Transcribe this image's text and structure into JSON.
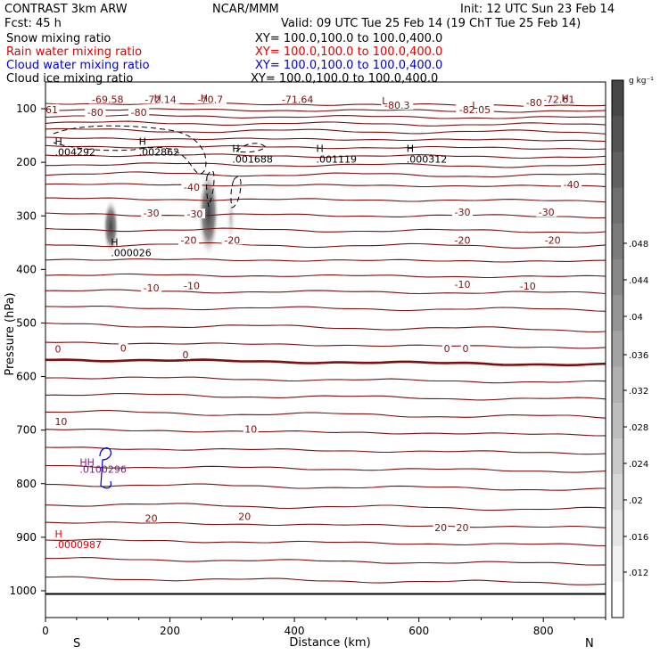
{
  "header": {
    "title": "CONTRAST  3km ARW",
    "center": "NCAR/MMM",
    "init": "Init: 12 UTC Sun 23 Feb 14",
    "fcst": "Fcst:   45 h",
    "valid": "Valid: 09 UTC Tue 25 Feb 14 (19 ChT Tue 25 Feb 14)"
  },
  "fields": [
    {
      "name": "Snow mixing ratio",
      "xy": "XY= 100.0,100.0 to 100.0,400.0",
      "color": "#000000"
    },
    {
      "name": "Rain water mixing ratio",
      "xy": "XY= 100.0,100.0 to 100.0,400.0",
      "color": "#dd0000"
    },
    {
      "name": "Cloud water mixing ratio",
      "xy": "XY= 100.0,100.0 to 100.0,400.0",
      "color": "#0000cc"
    },
    {
      "name": "Cloud ice mixing ratio",
      "xy": "XY= 100.0,100.0 to 100.0,400.0",
      "color": "#000000"
    }
  ],
  "colorbar": {
    "unit": "g kg⁻¹",
    "ticks": [
      ".012",
      ".016",
      ".02",
      ".024",
      ".028",
      ".032",
      ".036",
      ".04",
      ".044",
      ".048"
    ]
  },
  "chart_data": {
    "type": "cross-section contour",
    "xlabel": "Distance (km)",
    "ylabel": "Pressure (hPa)",
    "xlim": [
      0,
      900
    ],
    "ylim": [
      1050,
      50
    ],
    "x_ticks": [
      "0",
      "200",
      "400",
      "600",
      "800"
    ],
    "y_ticks": [
      "100",
      "200",
      "300",
      "400",
      "500",
      "600",
      "700",
      "800",
      "900",
      "1000"
    ],
    "x_ends": {
      "left": "S",
      "right": "N"
    },
    "colors": {
      "temperature": "#7a1010",
      "snow_shading": "#555555",
      "rain": "#dd0000",
      "cloud_water": "#0000cc"
    },
    "temperature_labels": [
      {
        "text": "-69.58",
        "x": 100,
        "p": 84
      },
      {
        "text": "-72.14",
        "x": 185,
        "p": 84
      },
      {
        "text": "-70.7",
        "x": 265,
        "p": 84
      },
      {
        "text": "-71.64",
        "x": 405,
        "p": 84
      },
      {
        "text": "-72.61",
        "x": 825,
        "p": 84
      },
      {
        "text": "-80",
        "x": 785,
        "p": 90
      },
      {
        "text": "-80.3",
        "x": 565,
        "p": 95
      },
      {
        "text": "-82.05",
        "x": 690,
        "p": 103
      },
      {
        "text": "61",
        "x": 10,
        "p": 103
      },
      {
        "text": "-80",
        "x": 80,
        "p": 108
      },
      {
        "text": "-80",
        "x": 150,
        "p": 108
      },
      {
        "text": "-40",
        "x": 235,
        "p": 248
      },
      {
        "text": "-40",
        "x": 845,
        "p": 243
      },
      {
        "text": "-30",
        "x": 170,
        "p": 296
      },
      {
        "text": "-30",
        "x": 240,
        "p": 298
      },
      {
        "text": "-30",
        "x": 670,
        "p": 295
      },
      {
        "text": "-30",
        "x": 805,
        "p": 295
      },
      {
        "text": "-20",
        "x": 230,
        "p": 347
      },
      {
        "text": "-20",
        "x": 300,
        "p": 347
      },
      {
        "text": "-20",
        "x": 670,
        "p": 347
      },
      {
        "text": "-20",
        "x": 815,
        "p": 347
      },
      {
        "text": "-10",
        "x": 170,
        "p": 436
      },
      {
        "text": "-10",
        "x": 235,
        "p": 432
      },
      {
        "text": "-10",
        "x": 670,
        "p": 429
      },
      {
        "text": "-10",
        "x": 775,
        "p": 433
      },
      {
        "text": "0",
        "x": 20,
        "p": 550
      },
      {
        "text": "0",
        "x": 125,
        "p": 548
      },
      {
        "text": "0",
        "x": 225,
        "p": 561
      },
      {
        "text": "0",
        "x": 645,
        "p": 549
      },
      {
        "text": "0",
        "x": 675,
        "p": 549
      },
      {
        "text": "10",
        "x": 25,
        "p": 686
      },
      {
        "text": "10",
        "x": 330,
        "p": 700
      },
      {
        "text": "20",
        "x": 170,
        "p": 866
      },
      {
        "text": "20",
        "x": 320,
        "p": 863
      },
      {
        "text": "20",
        "x": 635,
        "p": 884
      },
      {
        "text": "20",
        "x": 670,
        "p": 884
      }
    ],
    "highs": [
      {
        "label": "H",
        "value": ".004292",
        "x": 15,
        "p": 177,
        "color": "#000000"
      },
      {
        "label": "H",
        "value": ".002862",
        "x": 150,
        "p": 177,
        "color": "#000000"
      },
      {
        "label": "H",
        "value": ".001688",
        "x": 300,
        "p": 191,
        "color": "#000000"
      },
      {
        "label": "H",
        "value": ".001119",
        "x": 435,
        "p": 191,
        "color": "#000000"
      },
      {
        "label": "H",
        "value": ".000312",
        "x": 580,
        "p": 191,
        "color": "#000000"
      },
      {
        "label": "H",
        "value": ".000026",
        "x": 105,
        "p": 365,
        "color": "#000000"
      },
      {
        "label": "H",
        "value": ".0000987",
        "x": 15,
        "p": 910,
        "color": "#dd0000"
      }
    ],
    "lows": [
      {
        "label": "H",
        "x": 180,
        "p": 80
      },
      {
        "label": "H",
        "x": 255,
        "p": 80
      },
      {
        "label": "H",
        "x": 835,
        "p": 80
      },
      {
        "label": "L",
        "x": 545,
        "p": 85
      },
      {
        "label": "L",
        "x": 690,
        "p": 93
      }
    ],
    "overlap_text": ".0100296",
    "isotherm_p_at_0km": [
      90,
      101,
      113,
      126,
      140,
      155,
      170,
      186,
      203,
      221,
      241,
      268,
      297,
      325,
      353,
      381,
      410,
      440,
      471,
      503,
      536,
      568,
      601,
      633,
      666,
      699,
      733,
      767,
      801,
      838,
      872,
      905,
      940,
      976
    ],
    "ground_p": 1006
  }
}
